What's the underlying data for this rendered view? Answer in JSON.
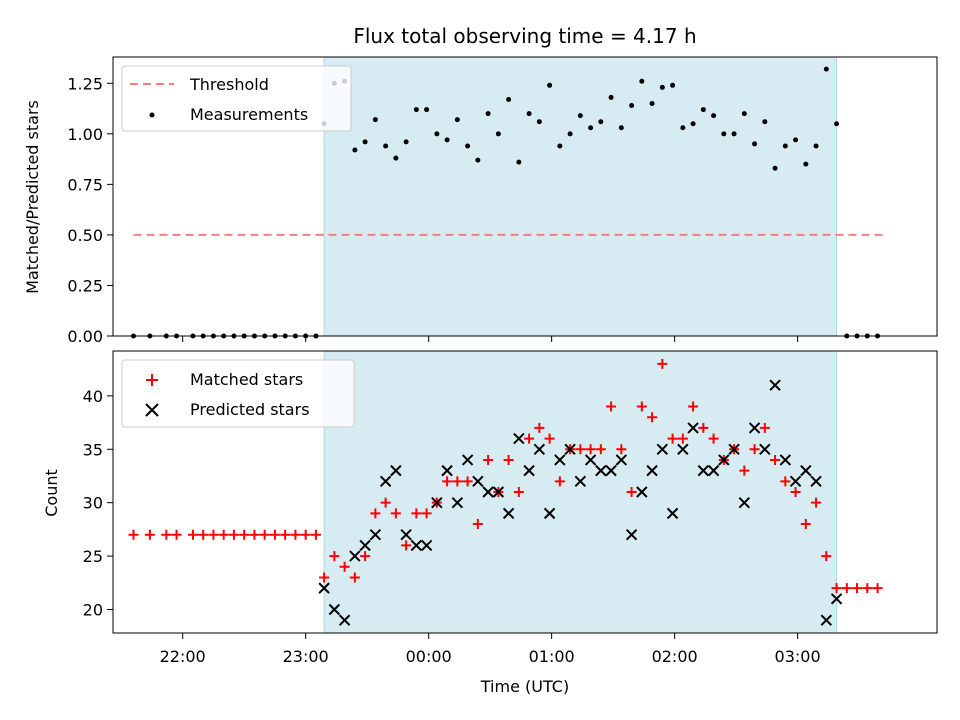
{
  "chart_data": [
    {
      "type": "scatter",
      "title": "Flux total observing time = 4.17 h",
      "xlabel": "",
      "ylabel": "Matched/Predicted stars",
      "ylim": [
        0,
        1.38
      ],
      "yticks": [
        "0.00",
        "0.25",
        "0.50",
        "0.75",
        "1.00",
        "1.25"
      ],
      "xlim": [
        "21:26",
        "04:08"
      ],
      "shaded_span": [
        "23:09",
        "03:19"
      ],
      "legend_position": "top-left",
      "threshold": {
        "name": "Threshold",
        "value": 0.5,
        "x": [
          "21:36",
          "03:43"
        ],
        "color": "#f08080"
      },
      "series": [
        {
          "name": "Measurements",
          "color": "#000000",
          "x": [
            "21:36",
            "21:44",
            "21:52",
            "21:57",
            "22:05",
            "22:10",
            "22:15",
            "22:20",
            "22:25",
            "22:30",
            "22:35",
            "22:40",
            "22:45",
            "22:50",
            "22:55",
            "23:00",
            "23:05",
            "23:09",
            "23:14",
            "23:19",
            "23:24",
            "23:29",
            "23:34",
            "23:39",
            "23:44",
            "23:49",
            "23:54",
            "23:59",
            "00:04",
            "00:09",
            "00:14",
            "00:19",
            "00:24",
            "00:29",
            "00:34",
            "00:39",
            "00:44",
            "00:49",
            "00:54",
            "00:59",
            "01:04",
            "01:09",
            "01:14",
            "01:19",
            "01:24",
            "01:29",
            "01:34",
            "01:39",
            "01:44",
            "01:49",
            "01:54",
            "01:59",
            "02:04",
            "02:09",
            "02:14",
            "02:19",
            "02:24",
            "02:29",
            "02:34",
            "02:39",
            "02:44",
            "02:49",
            "02:54",
            "02:59",
            "03:04",
            "03:09",
            "03:14",
            "03:19",
            "03:24",
            "03:29",
            "03:34",
            "03:39"
          ],
          "y": [
            0,
            0,
            0,
            0,
            0,
            0,
            0,
            0,
            0,
            0,
            0,
            0,
            0,
            0,
            0,
            0,
            0,
            1.05,
            1.25,
            1.26,
            0.92,
            0.96,
            1.07,
            0.94,
            0.88,
            0.96,
            1.12,
            1.12,
            1.0,
            0.97,
            1.07,
            0.94,
            0.87,
            1.1,
            1.0,
            1.17,
            0.86,
            1.1,
            1.06,
            1.24,
            0.94,
            1.0,
            1.09,
            1.03,
            1.06,
            1.18,
            1.03,
            1.14,
            1.26,
            1.15,
            1.23,
            1.24,
            1.03,
            1.05,
            1.12,
            1.09,
            1.0,
            1.0,
            1.1,
            0.95,
            1.06,
            0.83,
            0.94,
            0.97,
            0.85,
            0.94,
            1.32,
            1.05,
            0,
            0,
            0,
            0
          ]
        }
      ]
    },
    {
      "type": "scatter",
      "title": "",
      "xlabel": "Time (UTC)",
      "ylabel": "Count",
      "ylim": [
        17.8,
        44.2
      ],
      "yticks": [
        "20",
        "25",
        "30",
        "35",
        "40"
      ],
      "xlim": [
        "21:26",
        "04:08"
      ],
      "xticks": [
        "22:00",
        "23:00",
        "00:00",
        "01:00",
        "02:00",
        "03:00"
      ],
      "shaded_span": [
        "23:09",
        "03:19"
      ],
      "legend_position": "top-left",
      "series": [
        {
          "name": "Matched stars",
          "marker": "+",
          "color": "#ff0000",
          "x": [
            "21:36",
            "21:44",
            "21:52",
            "21:57",
            "22:05",
            "22:10",
            "22:15",
            "22:20",
            "22:25",
            "22:30",
            "22:35",
            "22:40",
            "22:45",
            "22:50",
            "22:55",
            "23:00",
            "23:05",
            "23:09",
            "23:14",
            "23:19",
            "23:24",
            "23:29",
            "23:34",
            "23:39",
            "23:44",
            "23:49",
            "23:54",
            "23:59",
            "00:04",
            "00:09",
            "00:14",
            "00:19",
            "00:24",
            "00:29",
            "00:34",
            "00:39",
            "00:44",
            "00:49",
            "00:54",
            "00:59",
            "01:04",
            "01:09",
            "01:14",
            "01:19",
            "01:24",
            "01:29",
            "01:34",
            "01:39",
            "01:44",
            "01:49",
            "01:54",
            "01:59",
            "02:04",
            "02:09",
            "02:14",
            "02:19",
            "02:24",
            "02:29",
            "02:34",
            "02:39",
            "02:44",
            "02:49",
            "02:54",
            "02:59",
            "03:04",
            "03:09",
            "03:14",
            "03:19",
            "03:24",
            "03:29",
            "03:34",
            "03:39"
          ],
          "y": [
            27,
            27,
            27,
            27,
            27,
            27,
            27,
            27,
            27,
            27,
            27,
            27,
            27,
            27,
            27,
            27,
            27,
            23,
            25,
            24,
            23,
            25,
            29,
            30,
            29,
            26,
            29,
            29,
            30,
            32,
            32,
            32,
            28,
            34,
            31,
            34,
            31,
            36,
            37,
            36,
            32,
            35,
            35,
            35,
            35,
            39,
            35,
            31,
            39,
            38,
            43,
            36,
            36,
            39,
            37,
            36,
            34,
            35,
            33,
            35,
            37,
            34,
            32,
            31,
            28,
            30,
            25,
            22,
            22,
            22,
            22,
            22
          ]
        },
        {
          "name": "Predicted stars",
          "marker": "x",
          "color": "#000000",
          "x": [
            "23:09",
            "23:14",
            "23:19",
            "23:24",
            "23:29",
            "23:34",
            "23:39",
            "23:44",
            "23:49",
            "23:54",
            "23:59",
            "00:04",
            "00:09",
            "00:14",
            "00:19",
            "00:24",
            "00:29",
            "00:34",
            "00:39",
            "00:44",
            "00:49",
            "00:54",
            "00:59",
            "01:04",
            "01:09",
            "01:14",
            "01:19",
            "01:24",
            "01:29",
            "01:34",
            "01:39",
            "01:44",
            "01:49",
            "01:54",
            "01:59",
            "02:04",
            "02:09",
            "02:14",
            "02:19",
            "02:24",
            "02:29",
            "02:34",
            "02:39",
            "02:44",
            "02:49",
            "02:54",
            "02:59",
            "03:04",
            "03:09",
            "03:14",
            "03:19"
          ],
          "y": [
            22,
            20,
            19,
            25,
            26,
            27,
            32,
            33,
            27,
            26,
            26,
            30,
            33,
            30,
            34,
            32,
            31,
            31,
            29,
            36,
            33,
            35,
            29,
            34,
            35,
            32,
            34,
            33,
            33,
            34,
            27,
            31,
            33,
            35,
            29,
            35,
            37,
            33,
            33,
            34,
            35,
            30,
            37,
            35,
            41,
            34,
            32,
            33,
            32,
            19,
            21
          ]
        }
      ]
    }
  ]
}
